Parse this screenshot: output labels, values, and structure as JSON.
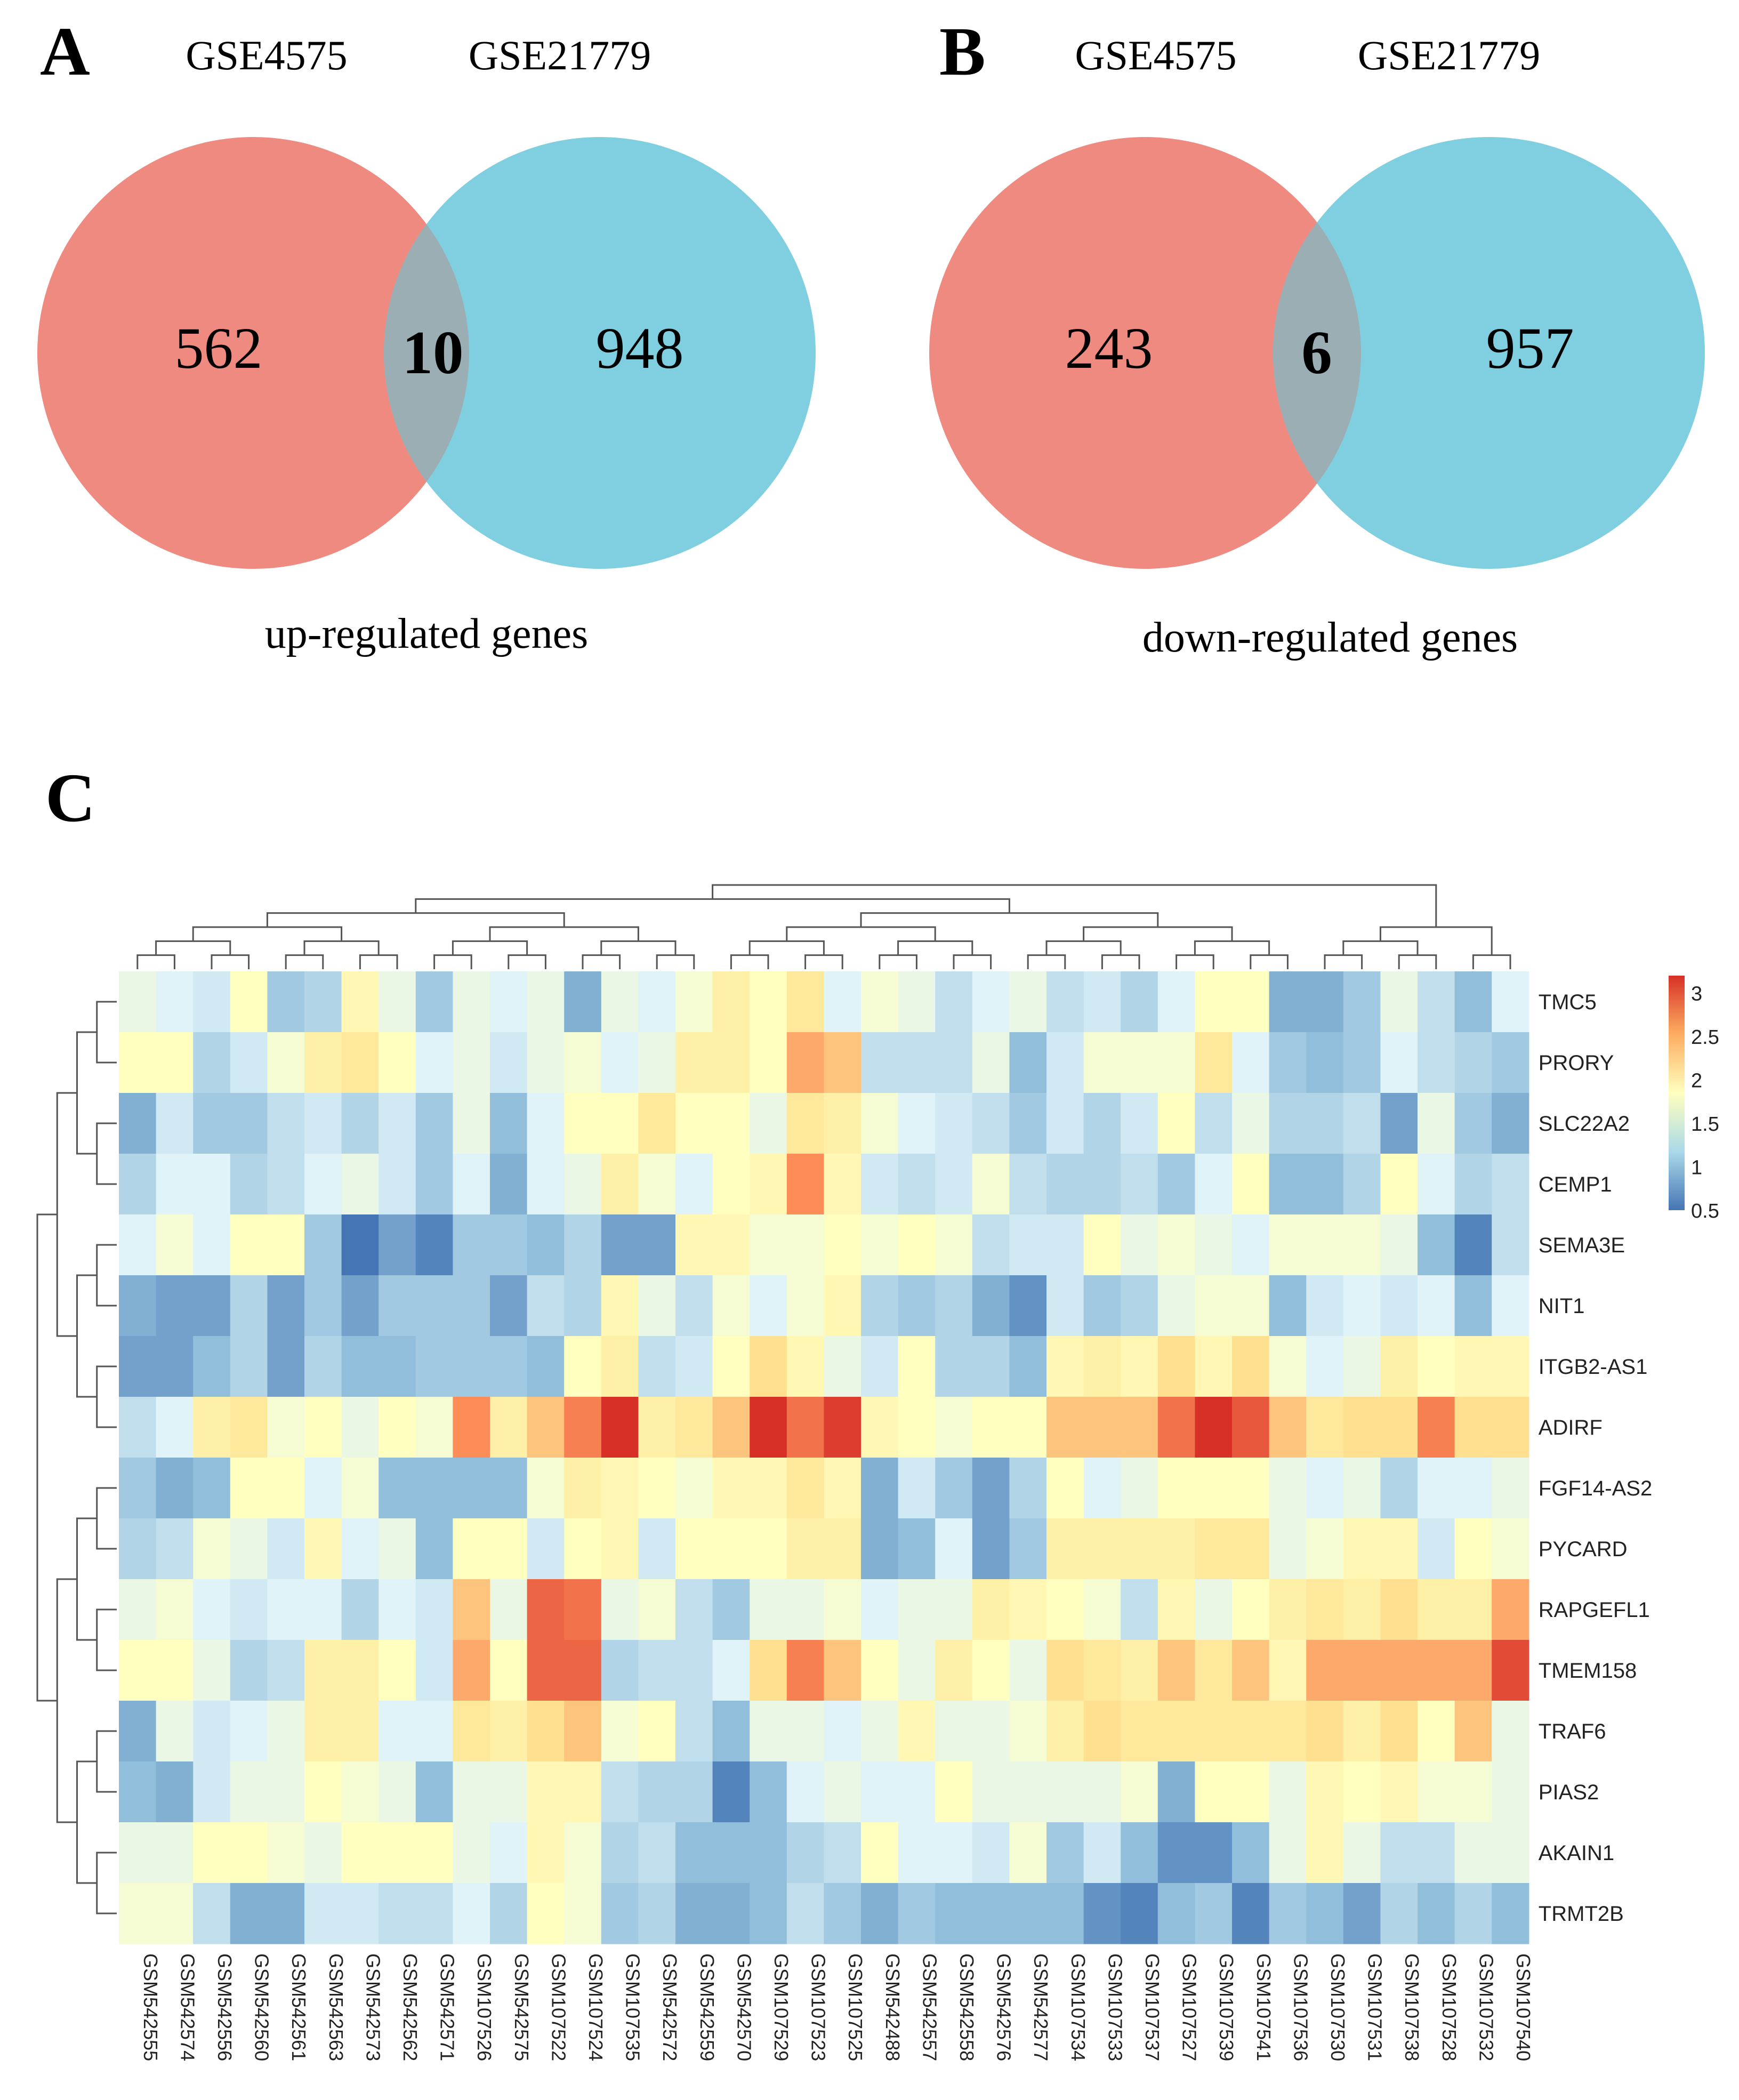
{
  "panels": {
    "A": {
      "letter": "A",
      "left_label": "GSE4575",
      "right_label": "GSE21779",
      "left_only": "562",
      "overlap": "10",
      "right_only": "948",
      "caption": "up-regulated genes"
    },
    "B": {
      "letter": "B",
      "left_label": "GSE4575",
      "right_label": "GSE21779",
      "left_only": "243",
      "overlap": "6",
      "right_only": "957",
      "caption": "down-regulated genes"
    },
    "C": {
      "letter": "C"
    }
  },
  "colors": {
    "venn_left": "#ee8a80",
    "venn_right": "#80cfe0",
    "venn_overlap": "#9aaeb3",
    "scale_low": "#4575b4",
    "scale_mid": "#ffffbf",
    "scale_high": "#d73027"
  },
  "chart_data": [
    {
      "type": "venn",
      "title": "up-regulated genes",
      "sets": [
        "GSE4575",
        "GSE21779"
      ],
      "values": {
        "GSE4575 only": 562,
        "both": 10,
        "GSE21779 only": 948
      }
    },
    {
      "type": "venn",
      "title": "down-regulated genes",
      "sets": [
        "GSE4575",
        "GSE21779"
      ],
      "values": {
        "GSE4575 only": 243,
        "both": 6,
        "GSE21779 only": 957
      }
    },
    {
      "type": "heatmap",
      "title": "",
      "rows": [
        "TMC5",
        "PRORY",
        "SLC22A2",
        "CEMP1",
        "SEMA3E",
        "NIT1",
        "ITGB2-AS1",
        "ADIRF",
        "FGF14-AS2",
        "PYCARD",
        "RAPGEFL1",
        "TMEM158",
        "TRAF6",
        "PIAS2",
        "AKAIN1",
        "TRMT2B"
      ],
      "columns": [
        "GSM542555",
        "GSM542574",
        "GSM542556",
        "GSM542560",
        "GSM542561",
        "GSM542563",
        "GSM542573",
        "GSM542562",
        "GSM542571",
        "GSM107526",
        "GSM542575",
        "GSM107522",
        "GSM107524",
        "GSM107535",
        "GSM542572",
        "GSM542559",
        "GSM542570",
        "GSM107529",
        "GSM107523",
        "GSM107525",
        "GSM542488",
        "GSM542557",
        "GSM542558",
        "GSM542576",
        "GSM542577",
        "GSM107534",
        "GSM107533",
        "GSM107537",
        "GSM107527",
        "GSM107539",
        "GSM107541",
        "GSM107536",
        "GSM107530",
        "GSM107531",
        "GSM107538",
        "GSM107528",
        "GSM107532",
        "GSM107540"
      ],
      "values": [
        [
          1.6,
          1.5,
          1.4,
          1.8,
          1.1,
          1.2,
          1.9,
          1.6,
          1.1,
          1.6,
          1.5,
          1.6,
          0.9,
          1.6,
          1.5,
          1.7,
          2.0,
          1.8,
          2.1,
          1.5,
          1.7,
          1.6,
          1.3,
          1.5,
          1.6,
          1.3,
          1.4,
          1.2,
          1.5,
          1.8,
          1.8,
          0.9,
          0.9,
          1.1,
          1.6,
          1.3,
          1.0,
          1.5
        ],
        [
          1.8,
          1.8,
          1.2,
          1.4,
          1.7,
          2.0,
          2.1,
          1.8,
          1.5,
          1.6,
          1.4,
          1.6,
          1.7,
          1.5,
          1.6,
          2.0,
          2.0,
          1.8,
          2.4,
          2.3,
          1.3,
          1.3,
          1.3,
          1.6,
          1.0,
          1.4,
          1.7,
          1.7,
          1.7,
          2.1,
          1.5,
          1.1,
          1.0,
          1.1,
          1.5,
          1.3,
          1.2,
          1.1
        ],
        [
          0.9,
          1.4,
          1.1,
          1.1,
          1.3,
          1.4,
          1.2,
          1.4,
          1.1,
          1.6,
          1.0,
          1.5,
          1.8,
          1.8,
          2.1,
          1.8,
          1.8,
          1.6,
          2.1,
          2.0,
          1.7,
          1.5,
          1.4,
          1.3,
          1.1,
          1.4,
          1.2,
          1.4,
          1.8,
          1.3,
          1.6,
          1.2,
          1.2,
          1.3,
          0.8,
          1.6,
          1.1,
          0.9
        ],
        [
          1.2,
          1.5,
          1.5,
          1.2,
          1.3,
          1.5,
          1.6,
          1.4,
          1.1,
          1.5,
          0.9,
          1.5,
          1.6,
          2.0,
          1.7,
          1.5,
          1.8,
          1.9,
          2.5,
          1.9,
          1.4,
          1.3,
          1.4,
          1.7,
          1.3,
          1.2,
          1.2,
          1.3,
          1.1,
          1.5,
          1.8,
          1.0,
          1.0,
          1.2,
          1.8,
          1.5,
          1.2,
          1.3
        ],
        [
          1.5,
          1.7,
          1.5,
          1.8,
          1.8,
          1.1,
          0.5,
          0.8,
          0.6,
          1.1,
          1.1,
          1.0,
          1.2,
          0.8,
          0.8,
          1.9,
          1.9,
          1.7,
          1.7,
          1.8,
          1.7,
          1.8,
          1.7,
          1.3,
          1.4,
          1.4,
          1.8,
          1.6,
          1.7,
          1.6,
          1.5,
          1.7,
          1.7,
          1.7,
          1.6,
          1.0,
          0.6,
          1.3
        ],
        [
          0.9,
          0.8,
          0.8,
          1.2,
          0.8,
          1.1,
          0.8,
          1.1,
          1.1,
          1.1,
          0.8,
          1.3,
          1.2,
          1.9,
          1.6,
          1.3,
          1.7,
          1.5,
          1.7,
          1.9,
          1.2,
          1.1,
          1.2,
          0.9,
          0.7,
          1.4,
          1.1,
          1.2,
          1.6,
          1.7,
          1.7,
          1.0,
          1.4,
          1.5,
          1.4,
          1.5,
          1.0,
          1.5
        ],
        [
          0.8,
          0.8,
          1.0,
          1.2,
          0.8,
          1.2,
          1.0,
          1.0,
          1.1,
          1.1,
          1.1,
          1.0,
          1.8,
          2.0,
          1.3,
          1.4,
          1.8,
          2.2,
          1.9,
          1.6,
          1.4,
          1.8,
          1.2,
          1.2,
          1.0,
          1.9,
          2.0,
          1.9,
          2.2,
          1.9,
          2.2,
          1.7,
          1.5,
          1.6,
          2.0,
          1.8,
          1.9,
          1.9
        ],
        [
          1.3,
          1.5,
          2.0,
          2.1,
          1.7,
          1.8,
          1.6,
          1.8,
          1.7,
          2.5,
          2.0,
          2.3,
          2.6,
          3.2,
          2.0,
          2.1,
          2.3,
          3.2,
          2.7,
          3.1,
          1.9,
          1.8,
          1.7,
          1.8,
          1.8,
          2.3,
          2.3,
          2.3,
          2.7,
          3.2,
          2.9,
          2.3,
          2.1,
          2.2,
          2.2,
          2.6,
          2.2,
          2.2
        ],
        [
          1.1,
          0.9,
          1.0,
          1.8,
          1.8,
          1.5,
          1.7,
          1.0,
          1.0,
          1.0,
          1.0,
          1.7,
          2.0,
          1.9,
          1.8,
          1.7,
          1.9,
          1.9,
          2.1,
          1.9,
          0.9,
          1.4,
          1.1,
          0.8,
          1.2,
          1.8,
          1.5,
          1.6,
          1.8,
          1.8,
          1.8,
          1.6,
          1.5,
          1.6,
          1.2,
          1.5,
          1.5,
          1.6
        ],
        [
          1.2,
          1.3,
          1.7,
          1.6,
          1.4,
          1.9,
          1.5,
          1.6,
          1.0,
          1.8,
          1.8,
          1.4,
          1.8,
          1.9,
          1.4,
          1.8,
          1.8,
          1.8,
          2.0,
          2.0,
          0.9,
          1.0,
          1.5,
          0.8,
          1.1,
          2.0,
          2.0,
          2.0,
          2.0,
          2.1,
          2.1,
          1.6,
          1.7,
          1.9,
          1.9,
          1.4,
          1.8,
          1.7
        ],
        [
          1.6,
          1.7,
          1.5,
          1.4,
          1.5,
          1.5,
          1.2,
          1.5,
          1.4,
          2.3,
          1.6,
          2.8,
          2.7,
          1.6,
          1.7,
          1.3,
          1.1,
          1.6,
          1.6,
          1.7,
          1.5,
          1.6,
          1.6,
          2.0,
          1.9,
          1.8,
          1.7,
          1.3,
          1.9,
          1.6,
          1.8,
          2.0,
          2.1,
          2.0,
          2.2,
          2.0,
          2.0,
          2.4
        ],
        [
          1.8,
          1.8,
          1.6,
          1.2,
          1.3,
          2.0,
          2.0,
          1.8,
          1.4,
          2.4,
          1.8,
          2.8,
          2.8,
          1.2,
          1.3,
          1.3,
          1.5,
          2.2,
          2.6,
          2.3,
          1.8,
          1.6,
          2.0,
          1.8,
          1.6,
          2.2,
          2.1,
          2.0,
          2.3,
          2.1,
          2.3,
          1.9,
          2.4,
          2.4,
          2.4,
          2.4,
          2.4,
          3.0
        ],
        [
          0.9,
          1.6,
          1.4,
          1.5,
          1.6,
          2.0,
          2.0,
          1.5,
          1.5,
          2.1,
          2.0,
          2.2,
          2.3,
          1.7,
          1.8,
          1.3,
          1.0,
          1.6,
          1.6,
          1.5,
          1.6,
          1.9,
          1.6,
          1.6,
          1.7,
          2.0,
          2.2,
          2.1,
          2.1,
          2.1,
          2.1,
          2.1,
          2.2,
          2.0,
          2.2,
          1.8,
          2.3,
          1.6
        ],
        [
          1.0,
          0.9,
          1.4,
          1.6,
          1.6,
          1.8,
          1.7,
          1.6,
          1.0,
          1.6,
          1.6,
          1.9,
          1.9,
          1.3,
          1.2,
          1.2,
          0.6,
          1.0,
          1.5,
          1.6,
          1.5,
          1.5,
          1.8,
          1.6,
          1.6,
          1.6,
          1.6,
          1.7,
          0.9,
          1.8,
          1.8,
          1.6,
          1.9,
          1.8,
          1.9,
          1.7,
          1.7,
          1.6
        ],
        [
          1.6,
          1.6,
          1.8,
          1.8,
          1.7,
          1.6,
          1.8,
          1.8,
          1.8,
          1.6,
          1.5,
          1.9,
          1.7,
          1.2,
          1.3,
          1.0,
          1.0,
          1.0,
          1.2,
          1.3,
          1.8,
          1.5,
          1.5,
          1.4,
          1.7,
          1.1,
          1.4,
          1.0,
          0.7,
          0.7,
          1.0,
          1.6,
          1.9,
          1.6,
          1.3,
          1.3,
          1.6,
          1.6
        ],
        [
          1.7,
          1.7,
          1.3,
          0.9,
          0.9,
          1.4,
          1.4,
          1.3,
          1.3,
          1.5,
          1.2,
          1.8,
          1.7,
          1.1,
          1.2,
          0.9,
          0.9,
          1.0,
          1.3,
          1.1,
          0.9,
          1.1,
          1.0,
          1.0,
          1.0,
          1.0,
          0.7,
          0.6,
          1.0,
          1.1,
          0.6,
          1.1,
          1.0,
          0.8,
          1.2,
          1.0,
          1.2,
          1.0
        ]
      ],
      "color_scale": {
        "min": 0.5,
        "max": 3.2,
        "ticks": [
          "0.5",
          "1",
          "1.5",
          "2",
          "2.5",
          "3"
        ],
        "tick_values": [
          0.5,
          1,
          1.5,
          2,
          2.5,
          3
        ]
      }
    }
  ]
}
